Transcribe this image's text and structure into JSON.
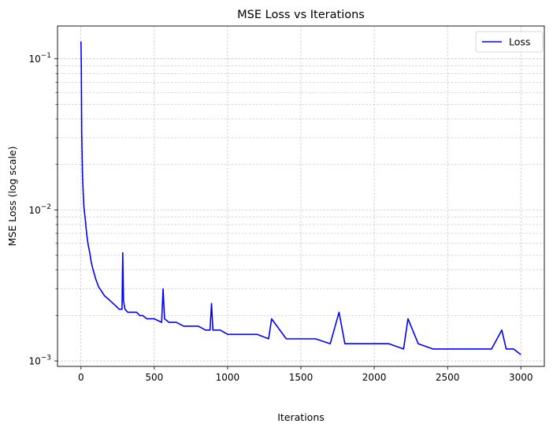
{
  "chart_data": {
    "type": "line",
    "title": "MSE Loss vs Iterations",
    "xlabel": "Iterations",
    "ylabel": "MSE Loss (log scale)",
    "xlim": [
      -160,
      3160
    ],
    "ylim": [
      0.00092,
      0.165
    ],
    "yscale": "log",
    "grid": true,
    "legend_position": "top-right",
    "line_color": "#0000ff",
    "grid_color": "#b0b0b0",
    "x_ticks": [
      {
        "value": 0,
        "label": "0"
      },
      {
        "value": 500,
        "label": "500"
      },
      {
        "value": 1000,
        "label": "1000"
      },
      {
        "value": 1500,
        "label": "1500"
      },
      {
        "value": 2000,
        "label": "2000"
      },
      {
        "value": 2500,
        "label": "2500"
      },
      {
        "value": 3000,
        "label": "3000"
      }
    ],
    "y_ticks": [
      {
        "value": 0.001,
        "base": "10",
        "exp": "−3"
      },
      {
        "value": 0.01,
        "base": "10",
        "exp": "−2"
      },
      {
        "value": 0.1,
        "base": "10",
        "exp": "−1"
      }
    ],
    "series": [
      {
        "name": "Loss",
        "color": "#0000ff",
        "x": [
          0,
          2,
          5,
          10,
          15,
          20,
          30,
          40,
          50,
          60,
          70,
          80,
          90,
          100,
          120,
          140,
          160,
          180,
          200,
          220,
          240,
          260,
          280,
          285,
          290,
          300,
          320,
          340,
          360,
          380,
          400,
          420,
          450,
          480,
          500,
          550,
          560,
          570,
          600,
          650,
          700,
          750,
          800,
          850,
          880,
          890,
          900,
          950,
          1000,
          1100,
          1200,
          1280,
          1300,
          1400,
          1500,
          1600,
          1700,
          1760,
          1800,
          1900,
          2000,
          2100,
          2200,
          2230,
          2300,
          2400,
          2500,
          2600,
          2700,
          2800,
          2870,
          2900,
          2950,
          3000
        ],
        "y": [
          0.13,
          0.09,
          0.033,
          0.018,
          0.013,
          0.0105,
          0.0085,
          0.0068,
          0.0058,
          0.0052,
          0.0045,
          0.0041,
          0.0038,
          0.0035,
          0.0031,
          0.0029,
          0.0027,
          0.0026,
          0.0025,
          0.0024,
          0.0023,
          0.0022,
          0.0022,
          0.0052,
          0.0025,
          0.0022,
          0.0021,
          0.0021,
          0.0021,
          0.0021,
          0.002,
          0.002,
          0.0019,
          0.0019,
          0.0019,
          0.0018,
          0.003,
          0.0019,
          0.0018,
          0.0018,
          0.0017,
          0.0017,
          0.0017,
          0.0016,
          0.0016,
          0.0024,
          0.0016,
          0.0016,
          0.0015,
          0.0015,
          0.0015,
          0.0014,
          0.0019,
          0.0014,
          0.0014,
          0.0014,
          0.0013,
          0.0021,
          0.0013,
          0.0013,
          0.0013,
          0.0013,
          0.0012,
          0.0019,
          0.0013,
          0.0012,
          0.0012,
          0.0012,
          0.0012,
          0.0012,
          0.0016,
          0.0012,
          0.0012,
          0.0011
        ]
      }
    ]
  }
}
